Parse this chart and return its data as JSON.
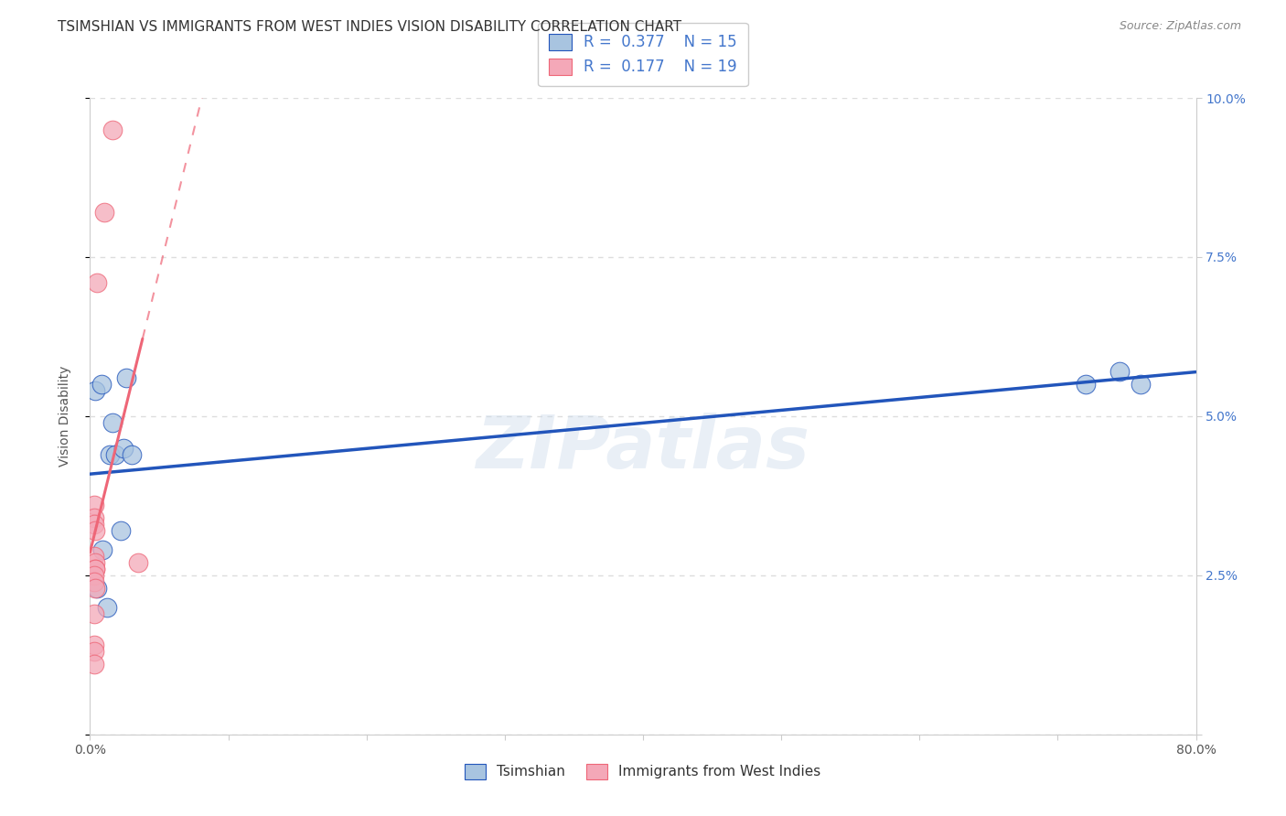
{
  "title": "TSIMSHIAN VS IMMIGRANTS FROM WEST INDIES VISION DISABILITY CORRELATION CHART",
  "source": "Source: ZipAtlas.com",
  "ylabel": "Vision Disability",
  "watermark": "ZIPatlas",
  "r1": 0.377,
  "n1": 15,
  "r2": 0.177,
  "n2": 19,
  "xlim": [
    0.0,
    0.8
  ],
  "ylim": [
    0.0,
    0.1
  ],
  "x_ticks": [
    0.0,
    0.1,
    0.2,
    0.3,
    0.4,
    0.5,
    0.6,
    0.7,
    0.8
  ],
  "y_ticks": [
    0.0,
    0.025,
    0.05,
    0.075,
    0.1
  ],
  "y_tick_labels": [
    "",
    "2.5%",
    "5.0%",
    "7.5%",
    "10.0%"
  ],
  "color_blue": "#A8C4E0",
  "color_pink": "#F4A8B8",
  "color_blue_line": "#2255BB",
  "color_pink_line": "#EE6677",
  "tsimshian_x": [
    0.004,
    0.008,
    0.014,
    0.018,
    0.024,
    0.03,
    0.022,
    0.005,
    0.009,
    0.016,
    0.026,
    0.72,
    0.745,
    0.76,
    0.012
  ],
  "tsimshian_y": [
    0.054,
    0.055,
    0.044,
    0.044,
    0.045,
    0.044,
    0.032,
    0.023,
    0.029,
    0.049,
    0.056,
    0.055,
    0.057,
    0.055,
    0.02
  ],
  "west_indies_x": [
    0.016,
    0.01,
    0.005,
    0.003,
    0.003,
    0.003,
    0.004,
    0.003,
    0.004,
    0.004,
    0.004,
    0.003,
    0.003,
    0.004,
    0.035,
    0.003,
    0.003,
    0.003,
    0.003
  ],
  "west_indies_y": [
    0.095,
    0.082,
    0.071,
    0.036,
    0.034,
    0.033,
    0.032,
    0.028,
    0.027,
    0.026,
    0.026,
    0.025,
    0.024,
    0.023,
    0.027,
    0.019,
    0.014,
    0.013,
    0.011
  ],
  "background_color": "#FFFFFF",
  "grid_color": "#DDDDDD",
  "title_fontsize": 11,
  "axis_label_fontsize": 10,
  "tick_fontsize": 10,
  "legend_fontsize": 12
}
